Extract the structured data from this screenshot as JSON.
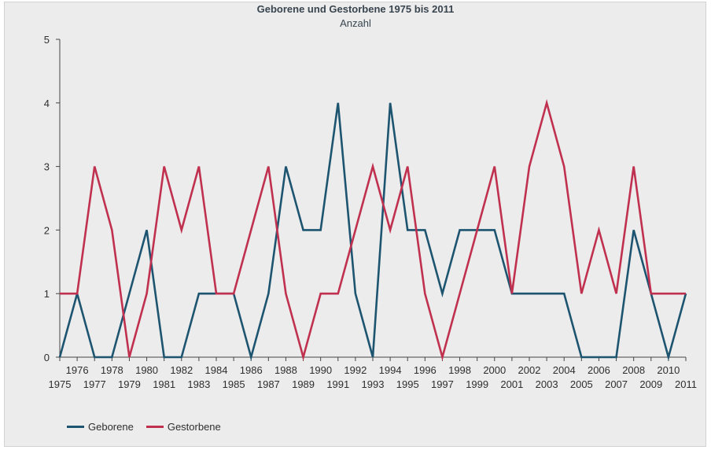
{
  "chart_data": {
    "type": "line",
    "title": "Geborene und Gestorbene 1975 bis 2011",
    "subtitle": "Anzahl",
    "xlabel": "",
    "ylabel": "",
    "x": [
      1975,
      1976,
      1977,
      1978,
      1979,
      1980,
      1981,
      1982,
      1983,
      1984,
      1985,
      1986,
      1987,
      1988,
      1989,
      1990,
      1991,
      1992,
      1993,
      1994,
      1995,
      1996,
      1997,
      1998,
      1999,
      2000,
      2001,
      2002,
      2003,
      2004,
      2005,
      2006,
      2007,
      2008,
      2009,
      2010,
      2011
    ],
    "ylim": [
      0,
      5
    ],
    "yticks": [
      0,
      1,
      2,
      3,
      4,
      5
    ],
    "grid": false,
    "legend_position": "bottom-left",
    "series": [
      {
        "name": "Geborene",
        "color": "#1d5470",
        "values": [
          0,
          1,
          0,
          0,
          1,
          2,
          0,
          0,
          1,
          1,
          1,
          0,
          1,
          3,
          2,
          2,
          4,
          1,
          0,
          4,
          2,
          2,
          1,
          2,
          2,
          2,
          1,
          1,
          1,
          1,
          0,
          0,
          0,
          2,
          1,
          0,
          1
        ]
      },
      {
        "name": "Gestorbene",
        "color": "#c0304f",
        "values": [
          1,
          1,
          3,
          2,
          0,
          1,
          3,
          2,
          3,
          1,
          1,
          2,
          3,
          1,
          0,
          1,
          1,
          2,
          3,
          2,
          3,
          1,
          0,
          1,
          2,
          3,
          1,
          3,
          4,
          3,
          1,
          2,
          1,
          3,
          1,
          1,
          1
        ]
      }
    ]
  }
}
